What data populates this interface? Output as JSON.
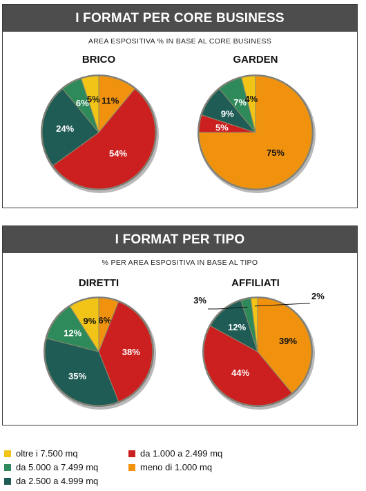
{
  "colors": {
    "oltre": "#f2c417",
    "da5000": "#2e8a5a",
    "da2500": "#1f5c55",
    "da1000": "#cc1f1f",
    "meno": "#f0920e"
  },
  "panels": [
    {
      "title": "I FORMAT PER CORE BUSINESS",
      "subtitle": "AREA ESPOSITIVA % IN BASE AL CORE BUSINESS"
    },
    {
      "title": "I FORMAT PER TIPO",
      "subtitle": "% PER AREA ESPOSITIVA IN BASE AL TIPO"
    }
  ],
  "legend": [
    {
      "key": "oltre",
      "label": "oltre i 7.500 mq"
    },
    {
      "key": "da5000",
      "label": "da 5.000 a 7.499 mq"
    },
    {
      "key": "da2500",
      "label": "da 2.500 a 4.999 mq"
    },
    {
      "key": "da1000",
      "label": "da 1.000 a 2.499 mq"
    },
    {
      "key": "meno",
      "label": "meno di 1.000 mq"
    }
  ],
  "chart_data": [
    {
      "type": "pie",
      "title": "BRICO",
      "slices": [
        {
          "key": "meno",
          "value": 11,
          "label": "11%"
        },
        {
          "key": "da1000",
          "value": 54,
          "label": "54%"
        },
        {
          "key": "da2500",
          "value": 24,
          "label": "24%"
        },
        {
          "key": "da5000",
          "value": 6,
          "label": "6%"
        },
        {
          "key": "oltre",
          "value": 5,
          "label": "5%"
        }
      ]
    },
    {
      "type": "pie",
      "title": "GARDEN",
      "slices": [
        {
          "key": "meno",
          "value": 75,
          "label": "75%"
        },
        {
          "key": "da1000",
          "value": 5,
          "label": "5%"
        },
        {
          "key": "da2500",
          "value": 9,
          "label": "9%"
        },
        {
          "key": "da5000",
          "value": 7,
          "label": "7%"
        },
        {
          "key": "oltre",
          "value": 4,
          "label": "4%"
        }
      ]
    },
    {
      "type": "pie",
      "title": "DIRETTI",
      "slices": [
        {
          "key": "meno",
          "value": 6,
          "label": "6%"
        },
        {
          "key": "da1000",
          "value": 38,
          "label": "38%"
        },
        {
          "key": "da2500",
          "value": 35,
          "label": "35%"
        },
        {
          "key": "da5000",
          "value": 12,
          "label": "12%"
        },
        {
          "key": "oltre",
          "value": 9,
          "label": "9%"
        }
      ]
    },
    {
      "type": "pie",
      "title": "AFFILIATI",
      "slices": [
        {
          "key": "meno",
          "value": 39,
          "label": "39%"
        },
        {
          "key": "da1000",
          "value": 44,
          "label": "44%"
        },
        {
          "key": "da2500",
          "value": 12,
          "label": "12%"
        },
        {
          "key": "da5000",
          "value": 3,
          "label": "3%"
        },
        {
          "key": "oltre",
          "value": 2,
          "label": "2%"
        }
      ]
    }
  ]
}
